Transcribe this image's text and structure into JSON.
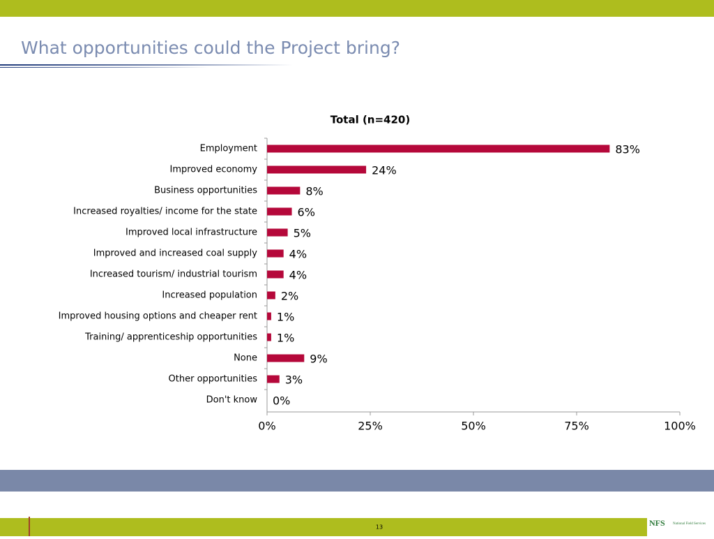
{
  "header": {
    "title": "What opportunities could the Project bring?"
  },
  "chart_data": {
    "type": "hbar",
    "title": "Total (n=420)",
    "categories": [
      "Employment",
      "Improved economy",
      "Business opportunities",
      "Increased royalties/ income for the state",
      "Improved local infrastructure",
      "Improved and increased coal supply",
      "Increased tourism/ industrial tourism",
      "Increased population",
      "Improved housing options and cheaper rent",
      "Training/ apprenticeship opportunities",
      "None",
      "Other opportunities",
      "Don't know"
    ],
    "values": [
      83,
      24,
      8,
      6,
      5,
      4,
      4,
      2,
      1,
      1,
      9,
      3,
      0
    ],
    "value_labels": [
      "83%",
      "24%",
      "8%",
      "6%",
      "5%",
      "4%",
      "4%",
      "2%",
      "1%",
      "1%",
      "9%",
      "3%",
      "0%"
    ],
    "color": "#b5083a",
    "xlim": [
      0,
      100
    ],
    "xticks": [
      {
        "value": 0,
        "label": "0%"
      },
      {
        "value": 25,
        "label": "25%"
      },
      {
        "value": 50,
        "label": "50%"
      },
      {
        "value": 75,
        "label": "75%"
      },
      {
        "value": 100,
        "label": "100%"
      }
    ]
  },
  "footer": {
    "page_number": "13",
    "logo": "NFS",
    "logo_subtitle": "National Field Services"
  }
}
